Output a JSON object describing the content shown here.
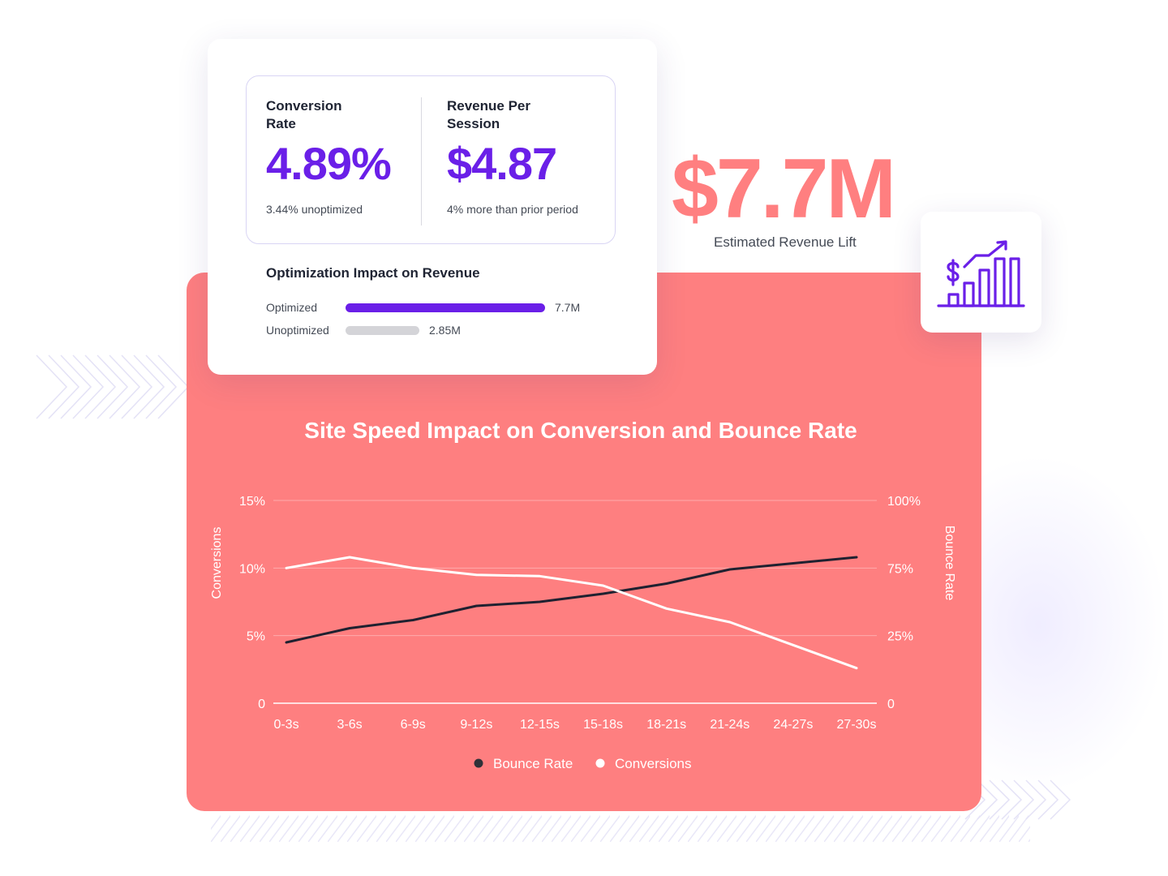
{
  "metrics_card": {
    "conversion_rate": {
      "label": "Conversion Rate",
      "value": "4.89%",
      "sub": "3.44% unoptimized"
    },
    "revenue_per_session": {
      "label": "Revenue Per Session",
      "value": "$4.87",
      "sub": "4% more than prior period"
    },
    "impact": {
      "title": "Optimization Impact on Revenue",
      "rows": [
        {
          "label": "Optimized",
          "value_text": "7.7M",
          "value": 7.7,
          "color": "#6a1fe8"
        },
        {
          "label": "Unoptimized",
          "value_text": "2.85M",
          "value": 2.85,
          "color": "#d4d4d8"
        }
      ]
    }
  },
  "revenue_lift": {
    "value": "$7.7M",
    "label": "Estimated Revenue Lift"
  },
  "icon_card": {
    "icon": "revenue-growth-chart-icon",
    "color": "#6a1fe8"
  },
  "colors": {
    "accent_purple": "#6a1fe8",
    "coral": "#fe7f80",
    "bounce_line": "#1f2130",
    "conversions_line": "#ffffff"
  },
  "chart_data": {
    "type": "line",
    "title": "Site Speed Impact on Conversion and Bounce Rate",
    "categories": [
      "0-3s",
      "3-6s",
      "6-9s",
      "9-12s",
      "12-15s",
      "15-18s",
      "18-21s",
      "21-24s",
      "24-27s",
      "27-30s"
    ],
    "y_left": {
      "label": "Conversions",
      "ticks": [
        "0",
        "5%",
        "10%",
        "15%"
      ],
      "range": [
        0,
        15
      ]
    },
    "y_right": {
      "label": "Bounce Rate",
      "ticks": [
        "0",
        "25%",
        "75%",
        "100%"
      ],
      "range": [
        0,
        100
      ]
    },
    "series": [
      {
        "name": "Bounce Rate",
        "axis": "right",
        "color": "#1f2130",
        "values": [
          30,
          37,
          41,
          48,
          50,
          54,
          59,
          66,
          69,
          72
        ]
      },
      {
        "name": "Conversions",
        "axis": "left",
        "color": "#ffffff",
        "values": [
          10.0,
          10.8,
          10.0,
          9.5,
          9.4,
          8.7,
          7.0,
          6.0,
          4.3,
          2.6
        ]
      }
    ],
    "legend": "bottom-center",
    "grid": true
  }
}
